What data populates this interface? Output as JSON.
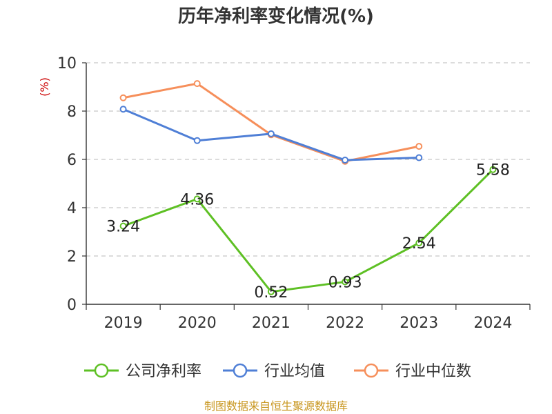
{
  "chart_data": {
    "type": "line",
    "title": "历年净利率变化情况(%)",
    "ylabel": "(%)",
    "xlabel": "",
    "categories": [
      "2019",
      "2020",
      "2021",
      "2022",
      "2023",
      "2024"
    ],
    "ylim": [
      0,
      10
    ],
    "yticks": [
      0,
      2,
      4,
      6,
      8,
      10
    ],
    "grid": true,
    "legend_position": "bottom",
    "series": [
      {
        "name": "公司净利率",
        "color": "#5ec024",
        "values": [
          3.24,
          4.36,
          0.52,
          0.93,
          2.54,
          5.58
        ],
        "labels": [
          "3.24",
          "4.36",
          "0.52",
          "0.93",
          "2.54",
          "5.58"
        ]
      },
      {
        "name": "行业均值",
        "color": "#4f7fd6",
        "values": [
          8.08,
          6.78,
          7.06,
          5.97,
          6.07,
          null
        ]
      },
      {
        "name": "行业中位数",
        "color": "#f68f5b",
        "values": [
          8.55,
          9.14,
          7.02,
          5.92,
          6.54,
          null
        ]
      }
    ],
    "source": "制图数据来自恒生聚源数据库"
  }
}
